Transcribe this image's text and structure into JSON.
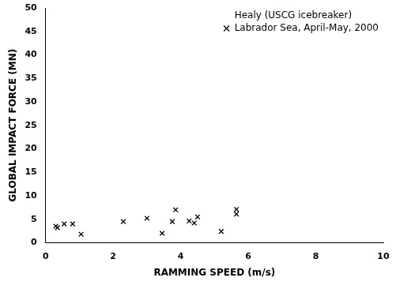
{
  "chart_data": {
    "type": "scatter",
    "annotation": "Healy (USCG icebreaker)",
    "x_label": "RAMMING SPEED (m/s)",
    "y_label": "GLOBAL IMPACT FORCE (MN)",
    "series": [
      {
        "name": "Labrador Sea, April-May, 2000",
        "color": "#000000",
        "marker": "x",
        "x": [
          0.3,
          0.35,
          0.55,
          0.8,
          1.05,
          2.3,
          3.0,
          3.45,
          3.75,
          3.85,
          4.25,
          4.4,
          4.5,
          5.2,
          5.65,
          5.65
        ],
        "values": [
          3.5,
          3.2,
          4.0,
          4.0,
          1.8,
          4.5,
          5.2,
          2.0,
          4.5,
          7.0,
          4.6,
          4.2,
          5.5,
          2.4,
          6.1,
          7.1
        ]
      }
    ],
    "xlim": [
      0,
      10
    ],
    "xticks": [
      0,
      2,
      4,
      6,
      8,
      10
    ],
    "ylim": [
      0,
      50
    ],
    "yticks": [
      0,
      5,
      10,
      15,
      20,
      25,
      30,
      35,
      40,
      45,
      50
    ],
    "grid": false,
    "legend": "top right"
  }
}
